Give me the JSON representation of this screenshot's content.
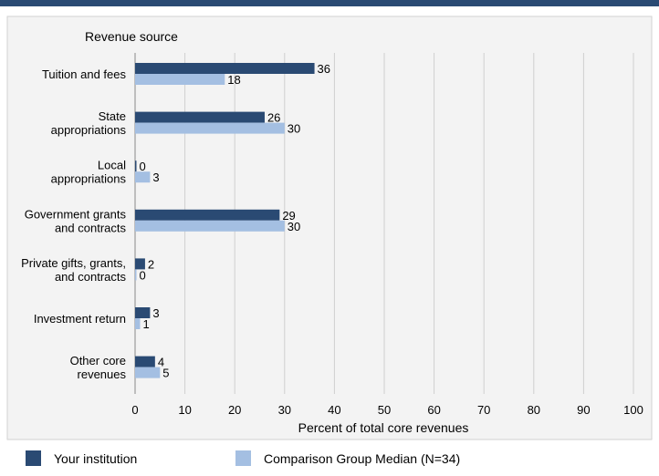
{
  "chart_data": {
    "type": "bar",
    "orientation": "horizontal",
    "title": "Revenue source",
    "xlabel": "Percent of total core revenues",
    "ylabel": "",
    "xlim": [
      0,
      100
    ],
    "xticks": [
      0,
      10,
      20,
      30,
      40,
      50,
      60,
      70,
      80,
      90,
      100
    ],
    "grid": true,
    "legend_position": "bottom",
    "categories": [
      [
        "Tuition and fees"
      ],
      [
        "State",
        "appropriations"
      ],
      [
        "Local",
        "appropriations"
      ],
      [
        "Government grants",
        "and contracts"
      ],
      [
        "Private gifts, grants,",
        "and contracts"
      ],
      [
        "Investment return"
      ],
      [
        "Other core",
        "revenues"
      ]
    ],
    "series": [
      {
        "name": "Your institution",
        "color": "#2a4a73",
        "values": [
          36,
          26,
          0,
          29,
          2,
          3,
          4
        ]
      },
      {
        "name": "Comparison Group Median (N=34)",
        "color": "#a4bfe2",
        "values": [
          18,
          30,
          3,
          30,
          0,
          1,
          5
        ]
      }
    ]
  }
}
